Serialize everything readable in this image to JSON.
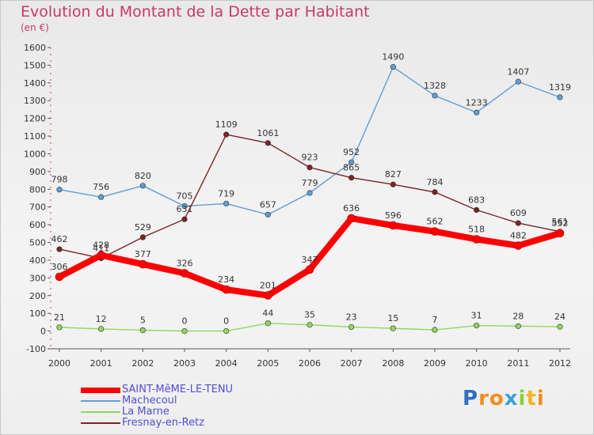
{
  "title": "Evolution du Montant de la Dette par Habitant",
  "subtitle": "(en €)",
  "chart_data": {
    "type": "line",
    "x": [
      "2000",
      "2001",
      "2002",
      "2003",
      "2004",
      "2005",
      "2006",
      "2007",
      "2008",
      "2009",
      "2010",
      "2011",
      "2012"
    ],
    "ylim": [
      -100,
      1600
    ],
    "yticks": [
      "-100",
      "0",
      "100",
      "200",
      "300",
      "400",
      "500",
      "600",
      "700",
      "800",
      "900",
      "1000",
      "1100",
      "1200",
      "1300",
      "1400",
      "1500",
      "1600"
    ],
    "grid": false,
    "legend_position": "bottom-left",
    "series": [
      {
        "name": "SAINT-MêME-LE-TENU",
        "color": "#ff0000",
        "values": [
          306,
          428,
          377,
          326,
          234,
          201,
          347,
          636,
          596,
          562,
          518,
          482,
          552
        ],
        "labels": [
          "306",
          "428",
          "377",
          "326",
          "234",
          "201",
          "347",
          "636",
          "596",
          "562",
          "518",
          "482",
          "552"
        ]
      },
      {
        "name": "Machecoul",
        "color": "#5f9ed6",
        "values": [
          798,
          756,
          820,
          705,
          719,
          657,
          779,
          952,
          1490,
          1328,
          1233,
          1407,
          1319
        ],
        "labels": [
          "798",
          "756",
          "820",
          "705",
          "719",
          "657",
          "779",
          "952",
          "1490",
          "1328",
          "1233",
          "1407",
          "1319"
        ]
      },
      {
        "name": "La Marne",
        "color": "#8ed85a",
        "values": [
          21,
          12,
          5,
          0,
          0,
          44,
          35,
          23,
          15,
          7,
          31,
          28,
          24
        ],
        "labels": [
          "21",
          "12",
          "5",
          "0",
          "0",
          "44",
          "35",
          "23",
          "15",
          "7",
          "31",
          "28",
          "24"
        ]
      },
      {
        "name": "Fresnay-en-Retz",
        "color": "#7a2424",
        "values": [
          462,
          411,
          529,
          631,
          1109,
          1061,
          923,
          865,
          827,
          784,
          683,
          609,
          561
        ],
        "labels": [
          "462",
          "411",
          "529",
          "631",
          "1109",
          "1061",
          "923",
          "865",
          "827",
          "784",
          "683",
          "609",
          "561"
        ]
      }
    ]
  },
  "logo": {
    "letters": [
      "P",
      "r",
      "o",
      "x",
      "i",
      "t",
      "i"
    ],
    "colors": [
      "#2f6fc4",
      "#f28c1e",
      "#f28c1e",
      "#3aa0d8",
      "#8ccf3a",
      "#f2b51e",
      "#f28c1e"
    ]
  }
}
